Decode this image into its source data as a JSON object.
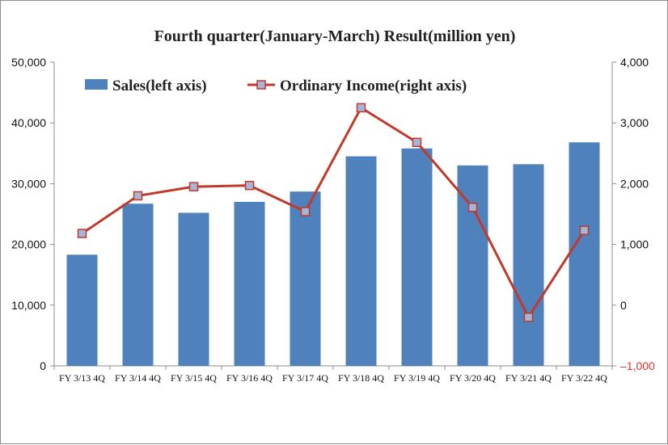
{
  "chart_data": {
    "type": "bar",
    "title": "Fourth quarter(January-March) Result(million yen)",
    "categories": [
      "FY 3/13 4Q",
      "FY 3/14 4Q",
      "FY 3/15 4Q",
      "FY 3/16 4Q",
      "FY 3/17 4Q",
      "FY 3/18 4Q",
      "FY 3/19 4Q",
      "FY 3/20 4Q",
      "FY 3/21 4Q",
      "FY 3/22 4Q"
    ],
    "series": [
      {
        "name": "Sales(left axis)",
        "type": "bar",
        "axis": "left",
        "color": "#4f81bd",
        "values": [
          18300,
          26700,
          25200,
          27000,
          28700,
          34500,
          35800,
          33000,
          33200,
          36800
        ]
      },
      {
        "name": "Ordinary Income(right axis)",
        "type": "line",
        "axis": "right",
        "color": "#c0392b",
        "marker_color": "#a6b5d8",
        "values": [
          1180,
          1800,
          1950,
          1970,
          1540,
          3250,
          2680,
          1610,
          -200,
          1230
        ]
      }
    ],
    "y_left": {
      "ylim": [
        0,
        50000
      ],
      "ticks": [
        0,
        10000,
        20000,
        30000,
        40000,
        50000
      ],
      "tick_labels": [
        "0",
        "10,000",
        "20,000",
        "30,000",
        "40,000",
        "50,000"
      ]
    },
    "y_right": {
      "ylim": [
        -1000,
        4000
      ],
      "ticks": [
        -1000,
        0,
        1000,
        2000,
        3000,
        4000
      ],
      "tick_labels": [
        "–1,000",
        "0",
        "1,000",
        "2,000",
        "3,000",
        "4,000"
      ],
      "negative_label_color": "#e8312a"
    },
    "grid": false,
    "legend": "top-left"
  }
}
